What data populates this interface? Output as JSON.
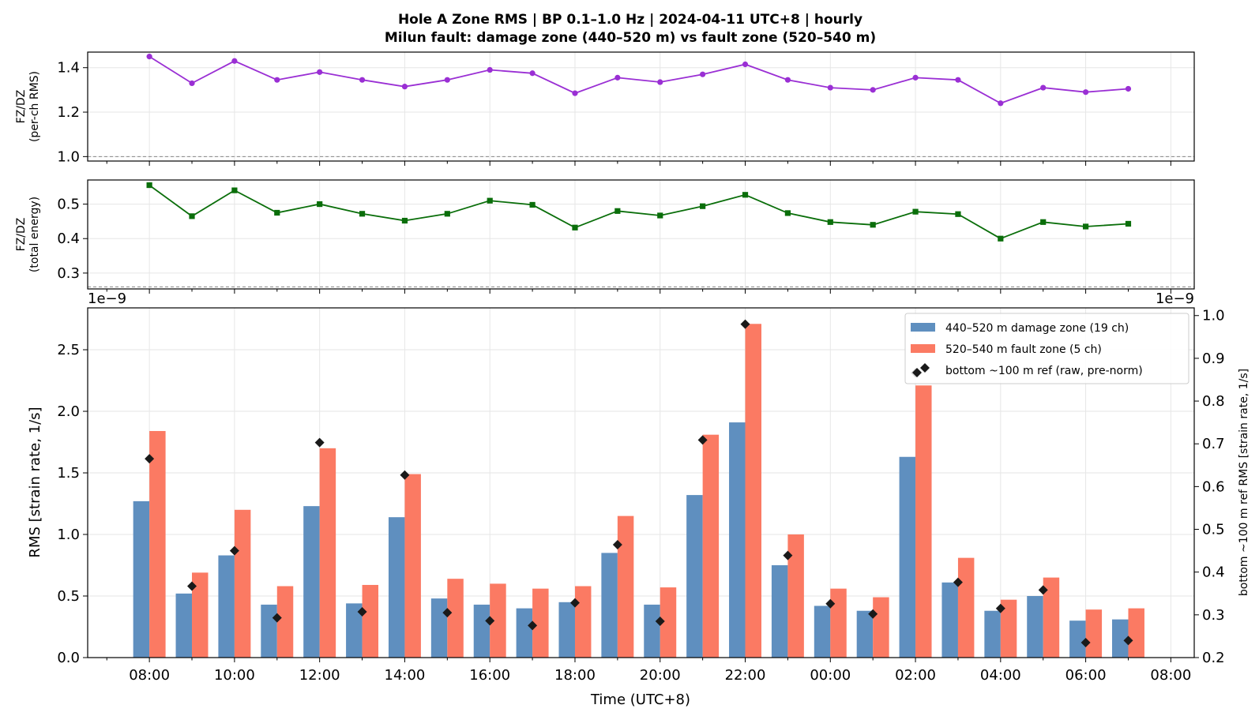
{
  "title_line1": "Hole A Zone RMS  |  BP 0.1–1.0 Hz  |  2024-04-11 UTC+8  |  hourly",
  "title_line2": "Milun fault: damage zone (440–520 m) vs fault zone (520–540 m)",
  "chart_data": [
    {
      "type": "line",
      "name": "top-ratio",
      "ylabel_line1": "FZ/DZ",
      "ylabel_line2": "(per-ch RMS)",
      "ylim": [
        0.98,
        1.47
      ],
      "yticks": [
        1.0,
        1.2,
        1.4
      ],
      "reference_line": 1.0,
      "color": "#9a2fd4",
      "marker": "circle",
      "x_hours": [
        8,
        9,
        10,
        11,
        12,
        13,
        14,
        15,
        16,
        17,
        18,
        19,
        20,
        21,
        22,
        23,
        24,
        25,
        26,
        27,
        28,
        29,
        30,
        31
      ],
      "values": [
        1.45,
        1.33,
        1.43,
        1.345,
        1.38,
        1.345,
        1.315,
        1.345,
        1.39,
        1.375,
        1.285,
        1.355,
        1.335,
        1.37,
        1.415,
        1.345,
        1.31,
        1.3,
        1.355,
        1.345,
        1.24,
        1.31,
        1.29,
        1.305
      ],
      "grid": true
    },
    {
      "type": "line",
      "name": "middle-ratio",
      "ylabel_line1": "FZ/DZ",
      "ylabel_line2": "(total energy)",
      "ylim": [
        0.254,
        0.57
      ],
      "yticks": [
        0.3,
        0.4,
        0.5
      ],
      "reference_line": 0.26,
      "color": "#0a6e0a",
      "marker": "square",
      "x_hours": [
        8,
        9,
        10,
        11,
        12,
        13,
        14,
        15,
        16,
        17,
        18,
        19,
        20,
        21,
        22,
        23,
        24,
        25,
        26,
        27,
        28,
        29,
        30,
        31
      ],
      "values": [
        0.555,
        0.465,
        0.54,
        0.475,
        0.5,
        0.472,
        0.452,
        0.472,
        0.51,
        0.498,
        0.432,
        0.48,
        0.467,
        0.494,
        0.527,
        0.474,
        0.448,
        0.44,
        0.478,
        0.471,
        0.4,
        0.448,
        0.435,
        0.443
      ],
      "grid": true
    },
    {
      "type": "bar",
      "name": "rms-bars",
      "offset_label_left": "1e−9",
      "offset_label_right": "1e−9",
      "xlabel": "Time (UTC+8)",
      "ylabel_left": "RMS  [strain rate, 1/s]",
      "ylabel_right": "bottom ~100 m ref RMS  [strain rate, 1/s]",
      "xlim": [
        6.55,
        32.55
      ],
      "x_tick_hours": [
        8,
        10,
        12,
        14,
        16,
        18,
        20,
        22,
        24,
        26,
        28,
        30,
        32
      ],
      "x_tick_labels": [
        "08:00",
        "10:00",
        "12:00",
        "14:00",
        "16:00",
        "18:00",
        "20:00",
        "22:00",
        "00:00",
        "02:00",
        "04:00",
        "06:00",
        "08:00"
      ],
      "ylim_left": [
        0,
        2.84
      ],
      "yticks_left": [
        0.0,
        0.5,
        1.0,
        1.5,
        2.0,
        2.5
      ],
      "ylim_right": [
        0.2,
        1.018
      ],
      "yticks_right": [
        0.2,
        0.3,
        0.4,
        0.5,
        0.6,
        0.7,
        0.8,
        0.9,
        1.0
      ],
      "x_hours": [
        8,
        9,
        10,
        11,
        12,
        13,
        14,
        15,
        16,
        17,
        18,
        19,
        20,
        21,
        22,
        23,
        24,
        25,
        26,
        27,
        28,
        29,
        30,
        31
      ],
      "series": [
        {
          "name": "440–520 m  damage zone (19 ch)",
          "color": "#5f8fbf",
          "values": [
            1.27,
            0.52,
            0.83,
            0.43,
            1.23,
            0.44,
            1.14,
            0.48,
            0.43,
            0.4,
            0.45,
            0.85,
            0.43,
            1.32,
            1.91,
            0.75,
            0.42,
            0.38,
            1.63,
            0.61,
            0.38,
            0.5,
            0.3,
            0.31
          ]
        },
        {
          "name": "520–540 m  fault zone (5 ch)",
          "color": "#fb7a63",
          "values": [
            1.84,
            0.69,
            1.2,
            0.58,
            1.7,
            0.59,
            1.49,
            0.64,
            0.6,
            0.56,
            0.58,
            1.15,
            0.57,
            1.81,
            2.71,
            1.0,
            0.56,
            0.49,
            2.21,
            0.81,
            0.47,
            0.65,
            0.39,
            0.4
          ]
        }
      ],
      "ref_series": {
        "name": "bottom ~100 m ref (raw, pre-norm)",
        "color": "#1a1a1a",
        "values": [
          0.665,
          0.367,
          0.45,
          0.293,
          0.703,
          0.307,
          0.627,
          0.305,
          0.286,
          0.275,
          0.328,
          0.464,
          0.285,
          0.709,
          0.98,
          0.439,
          0.326,
          0.302,
          0.866,
          0.376,
          0.315,
          0.358,
          0.235,
          0.24
        ]
      },
      "legend_position": "top-right",
      "grid": true
    }
  ]
}
